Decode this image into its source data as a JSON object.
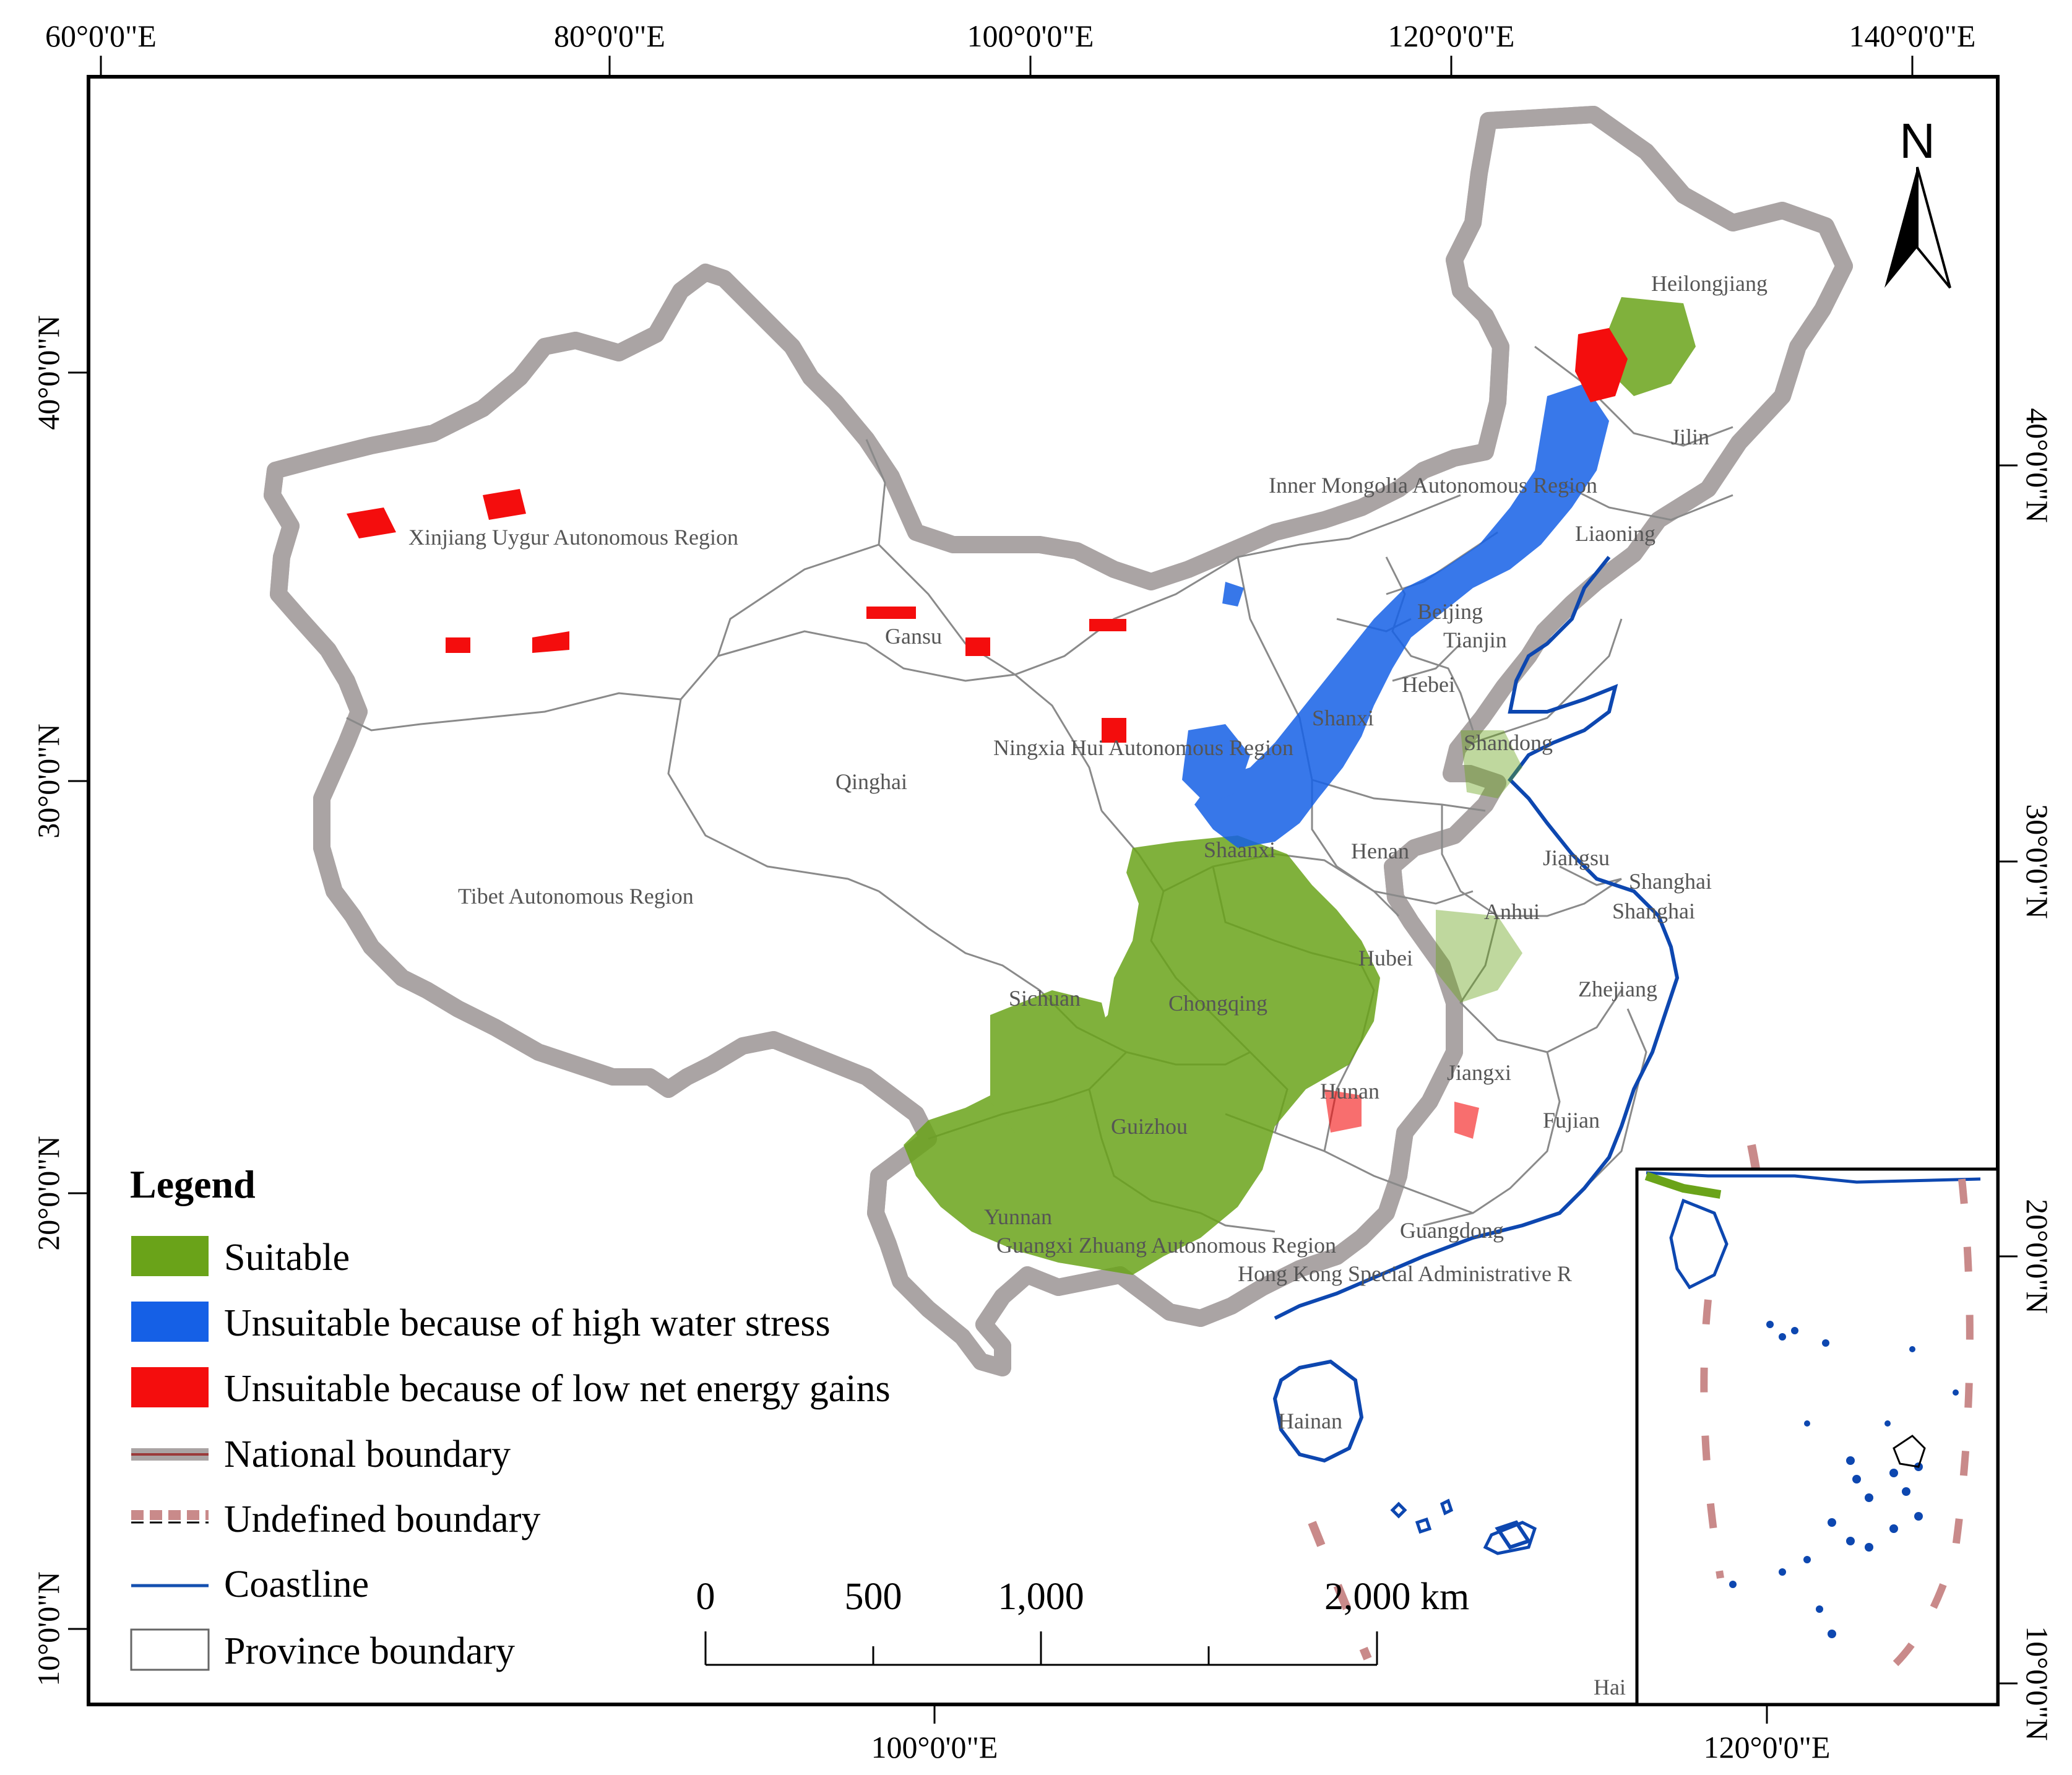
{
  "top_axis_labels": [
    "60°0'0\"E",
    "80°0'0\"E",
    "100°0'0\"E",
    "120°0'0\"E",
    "140°0'0\"E"
  ],
  "bottom_axis_labels": [
    "100°0'0\"E",
    "120°0'0\"E"
  ],
  "left_axis_labels": [
    "40°0'0\"N",
    "30°0'0\"N",
    "20°0'0\"N",
    "10°0'0\"N"
  ],
  "right_axis_labels": [
    "40°0'0\"N",
    "30°0'0\"N",
    "20°0'0\"N",
    "10°0'0\"N"
  ],
  "provinces": [
    "Heilongjiang",
    "Jilin",
    "Inner Mongolia Autonomous Region",
    "Liaoning",
    "Xinjiang Uygur Autonomous Region",
    "Beijing",
    "Tianjin",
    "Gansu",
    "Hebei",
    "Shanxi",
    "Shandong",
    "Ningxia Hui Autonomous Region",
    "Qinghai",
    "Shaanxi",
    "Henan",
    "Jiangsu",
    "Shanghai",
    "Shanghai",
    "Tibet Autonomous Region",
    "Anhui",
    "Hubei",
    "Zhejiang",
    "Sichuan",
    "Chongqing",
    "Jiangxi",
    "Hunan",
    "Fujian",
    "Guizhou",
    "Yunnan",
    "Guangxi Zhuang Autonomous Region",
    "Guangdong",
    "Hong Kong Special Administrative R",
    "Hainan",
    "Hai"
  ],
  "north_label": "N",
  "legend": {
    "title": "Legend",
    "items": [
      {
        "label": "Suitable",
        "color": "#6aa319"
      },
      {
        "label": "Unsuitable because of high water stress",
        "color": "#1560e6"
      },
      {
        "label": "Unsuitable because of low net energy gains",
        "color": "#f40d0d"
      },
      {
        "label": "National boundary",
        "color": "#aaa4a4"
      },
      {
        "label": "Undefined boundary",
        "color": "#c98a8a"
      },
      {
        "label": "Coastline",
        "color": "#1450b0"
      },
      {
        "label": "Province boundary",
        "color": "#666666"
      }
    ]
  },
  "scale_bar": {
    "labels": [
      "0",
      "500",
      "1,000",
      "2,000 km"
    ]
  },
  "colors": {
    "suitable": "#6aa319",
    "water_stress": "#1560e6",
    "low_energy": "#f40d0d",
    "coastline": "#0d47b0",
    "national_halo": "#aaa4a4",
    "national_core": "#9b3a3a",
    "province": "#8a8a8a"
  }
}
